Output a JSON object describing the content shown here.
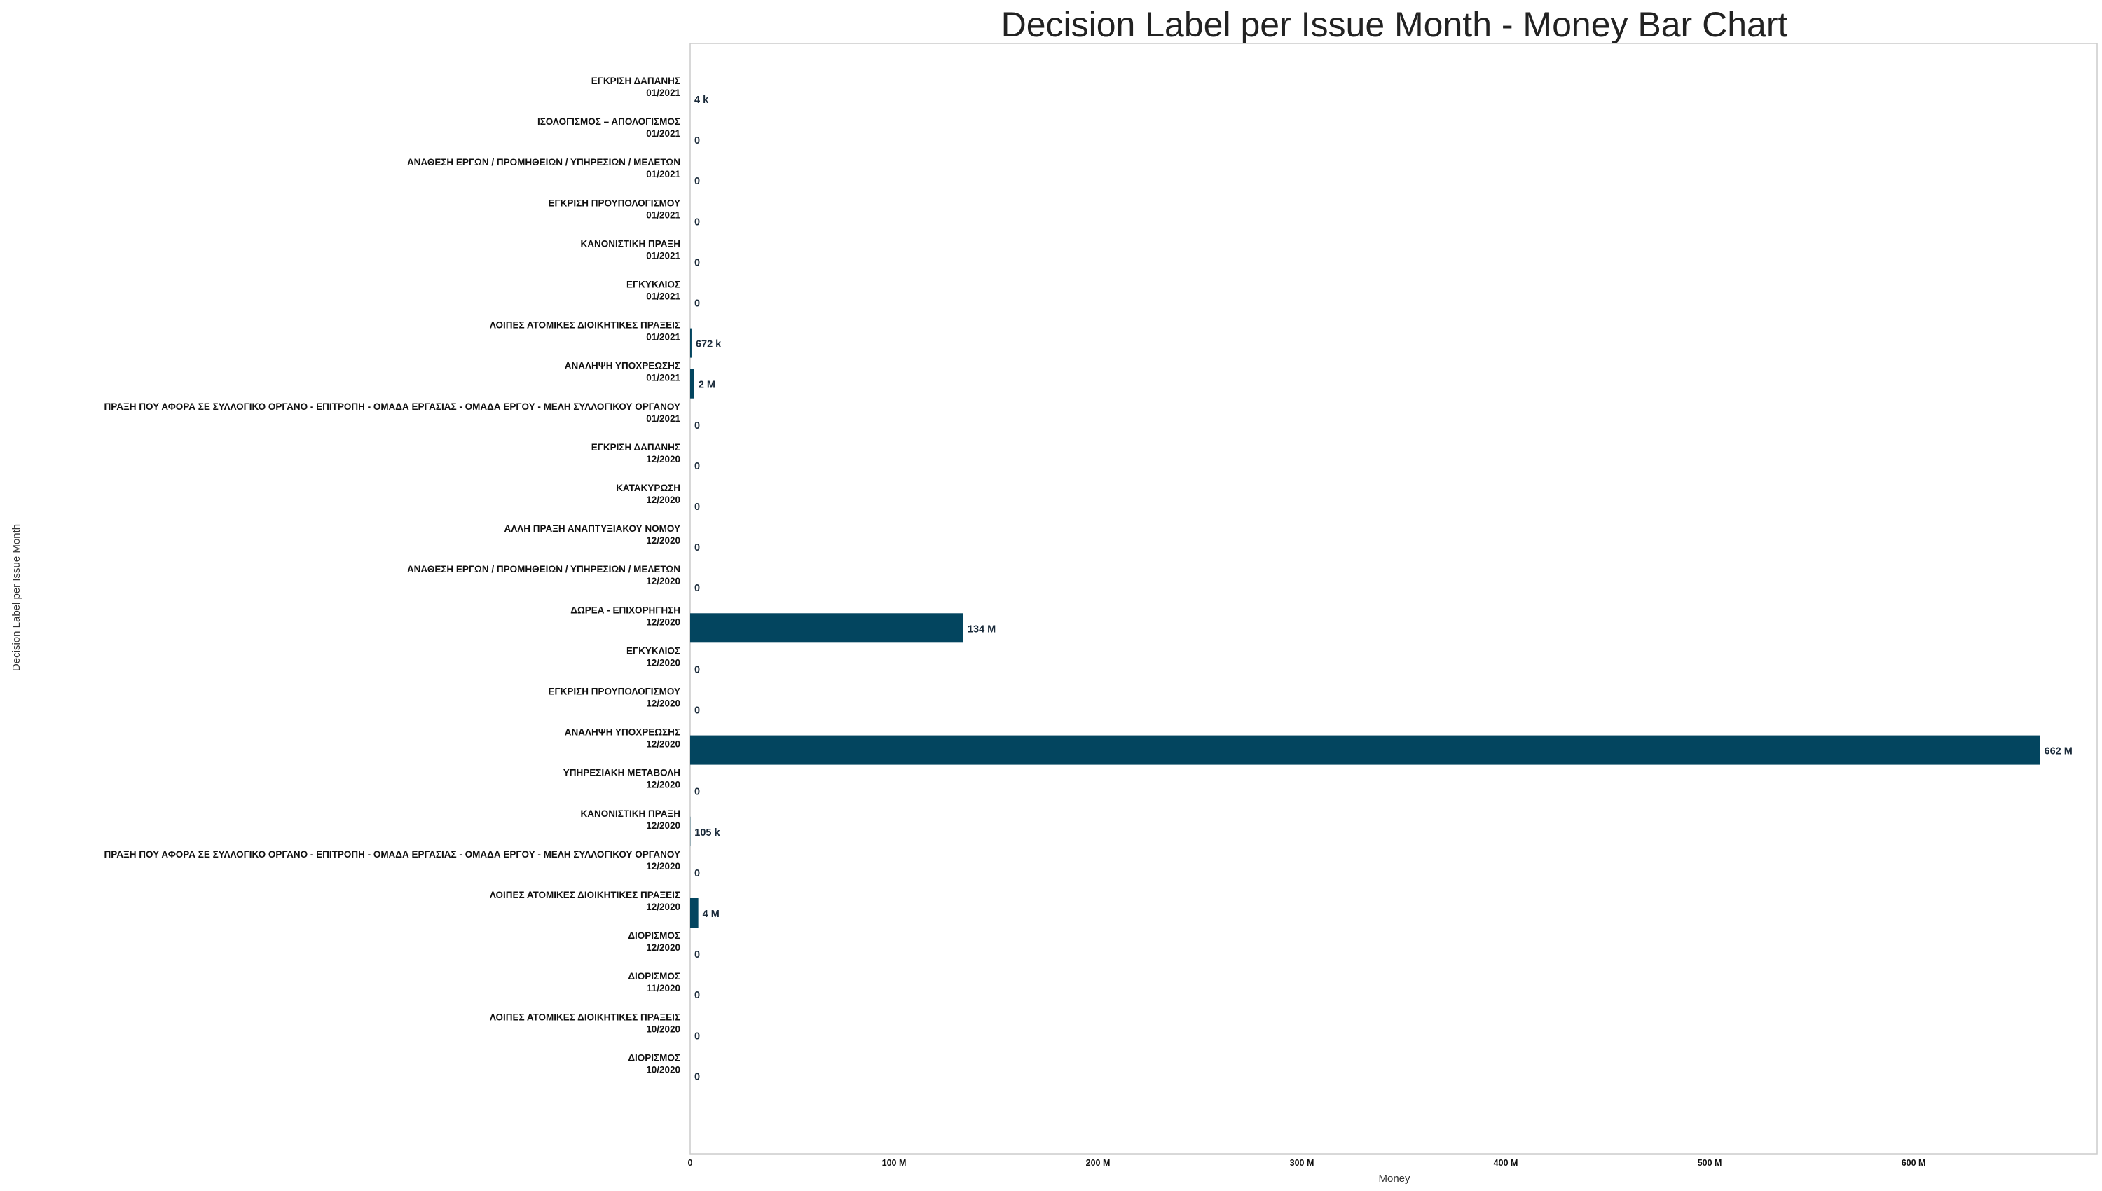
{
  "chart_data": {
    "type": "bar",
    "orientation": "horizontal",
    "title": "Decision Label per Issue Month - Money Bar Chart",
    "xlabel": "Money",
    "ylabel": "Decision Label per Issue Month",
    "xlim": [
      0,
      690000000
    ],
    "grid": false,
    "bar_color": "#03455f",
    "x_ticks": [
      {
        "value": 0,
        "label": "0"
      },
      {
        "value": 100000000,
        "label": "100 M"
      },
      {
        "value": 200000000,
        "label": "200 M"
      },
      {
        "value": 300000000,
        "label": "300 M"
      },
      {
        "value": 400000000,
        "label": "400 M"
      },
      {
        "value": 500000000,
        "label": "500 M"
      },
      {
        "value": 600000000,
        "label": "600 M"
      }
    ],
    "bars": [
      {
        "label": "ΕΓΚΡΙΣΗ ΔΑΠΑΝΗΣ",
        "month": "01/2021",
        "value": 4000,
        "value_label": "4 k"
      },
      {
        "label": "ΙΣΟΛΟΓΙΣΜΟΣ – ΑΠΟΛΟΓΙΣΜΟΣ",
        "month": "01/2021",
        "value": 0,
        "value_label": "0"
      },
      {
        "label": "ΑΝΑΘΕΣΗ ΕΡΓΩΝ / ΠΡΟΜΗΘΕΙΩΝ / ΥΠΗΡΕΣΙΩΝ / ΜΕΛΕΤΩΝ",
        "month": "01/2021",
        "value": 0,
        "value_label": "0"
      },
      {
        "label": "ΕΓΚΡΙΣΗ ΠΡΟΥΠΟΛΟΓΙΣΜΟΥ",
        "month": "01/2021",
        "value": 0,
        "value_label": "0"
      },
      {
        "label": "ΚΑΝΟΝΙΣΤΙΚΗ ΠΡΑΞΗ",
        "month": "01/2021",
        "value": 0,
        "value_label": "0"
      },
      {
        "label": "ΕΓΚΥΚΛΙΟΣ",
        "month": "01/2021",
        "value": 0,
        "value_label": "0"
      },
      {
        "label": "ΛΟΙΠΕΣ ΑΤΟΜΙΚΕΣ ΔΙΟΙΚΗΤΙΚΕΣ ΠΡΑΞΕΙΣ",
        "month": "01/2021",
        "value": 672000,
        "value_label": "672 k"
      },
      {
        "label": "ΑΝΑΛΗΨΗ ΥΠΟΧΡΕΩΣΗΣ",
        "month": "01/2021",
        "value": 2000000,
        "value_label": "2 M"
      },
      {
        "label": "ΠΡΑΞΗ ΠΟΥ ΑΦΟΡΑ ΣΕ ΣΥΛΛΟΓΙΚΟ ΟΡΓΑΝΟ - ΕΠΙΤΡΟΠΗ - ΟΜΑΔΑ ΕΡΓΑΣΙΑΣ - ΟΜΑΔΑ ΕΡΓΟΥ - ΜΕΛΗ ΣΥΛΛΟΓΙΚΟΥ ΟΡΓΑΝΟΥ",
        "month": "01/2021",
        "value": 0,
        "value_label": "0"
      },
      {
        "label": "ΕΓΚΡΙΣΗ ΔΑΠΑΝΗΣ",
        "month": "12/2020",
        "value": 0,
        "value_label": "0"
      },
      {
        "label": "ΚΑΤΑΚΥΡΩΣΗ",
        "month": "12/2020",
        "value": 0,
        "value_label": "0"
      },
      {
        "label": "ΑΛΛΗ ΠΡΑΞΗ ΑΝΑΠΤΥΞΙΑΚΟΥ ΝΟΜΟΥ",
        "month": "12/2020",
        "value": 0,
        "value_label": "0"
      },
      {
        "label": "ΑΝΑΘΕΣΗ ΕΡΓΩΝ / ΠΡΟΜΗΘΕΙΩΝ / ΥΠΗΡΕΣΙΩΝ / ΜΕΛΕΤΩΝ",
        "month": "12/2020",
        "value": 0,
        "value_label": "0"
      },
      {
        "label": "ΔΩΡΕΑ - ΕΠΙΧΟΡΗΓΗΣΗ",
        "month": "12/2020",
        "value": 134000000,
        "value_label": "134 M"
      },
      {
        "label": "ΕΓΚΥΚΛΙΟΣ",
        "month": "12/2020",
        "value": 0,
        "value_label": "0"
      },
      {
        "label": "ΕΓΚΡΙΣΗ ΠΡΟΥΠΟΛΟΓΙΣΜΟΥ",
        "month": "12/2020",
        "value": 0,
        "value_label": "0"
      },
      {
        "label": "ΑΝΑΛΗΨΗ ΥΠΟΧΡΕΩΣΗΣ",
        "month": "12/2020",
        "value": 662000000,
        "value_label": "662 M"
      },
      {
        "label": "ΥΠΗΡΕΣΙΑΚΗ ΜΕΤΑΒΟΛΗ",
        "month": "12/2020",
        "value": 0,
        "value_label": "0"
      },
      {
        "label": "ΚΑΝΟΝΙΣΤΙΚΗ ΠΡΑΞΗ",
        "month": "12/2020",
        "value": 105000,
        "value_label": "105 k"
      },
      {
        "label": "ΠΡΑΞΗ ΠΟΥ ΑΦΟΡΑ ΣΕ ΣΥΛΛΟΓΙΚΟ ΟΡΓΑΝΟ - ΕΠΙΤΡΟΠΗ - ΟΜΑΔΑ ΕΡΓΑΣΙΑΣ - ΟΜΑΔΑ ΕΡΓΟΥ - ΜΕΛΗ ΣΥΛΛΟΓΙΚΟΥ ΟΡΓΑΝΟΥ",
        "month": "12/2020",
        "value": 0,
        "value_label": "0"
      },
      {
        "label": "ΛΟΙΠΕΣ ΑΤΟΜΙΚΕΣ ΔΙΟΙΚΗΤΙΚΕΣ ΠΡΑΞΕΙΣ",
        "month": "12/2020",
        "value": 4000000,
        "value_label": "4 M"
      },
      {
        "label": "ΔΙΟΡΙΣΜΟΣ",
        "month": "12/2020",
        "value": 0,
        "value_label": "0"
      },
      {
        "label": "ΔΙΟΡΙΣΜΟΣ",
        "month": "11/2020",
        "value": 0,
        "value_label": "0"
      },
      {
        "label": "ΛΟΙΠΕΣ ΑΤΟΜΙΚΕΣ ΔΙΟΙΚΗΤΙΚΕΣ ΠΡΑΞΕΙΣ",
        "month": "10/2020",
        "value": 0,
        "value_label": "0"
      },
      {
        "label": "ΔΙΟΡΙΣΜΟΣ",
        "month": "10/2020",
        "value": 0,
        "value_label": "0"
      }
    ]
  }
}
